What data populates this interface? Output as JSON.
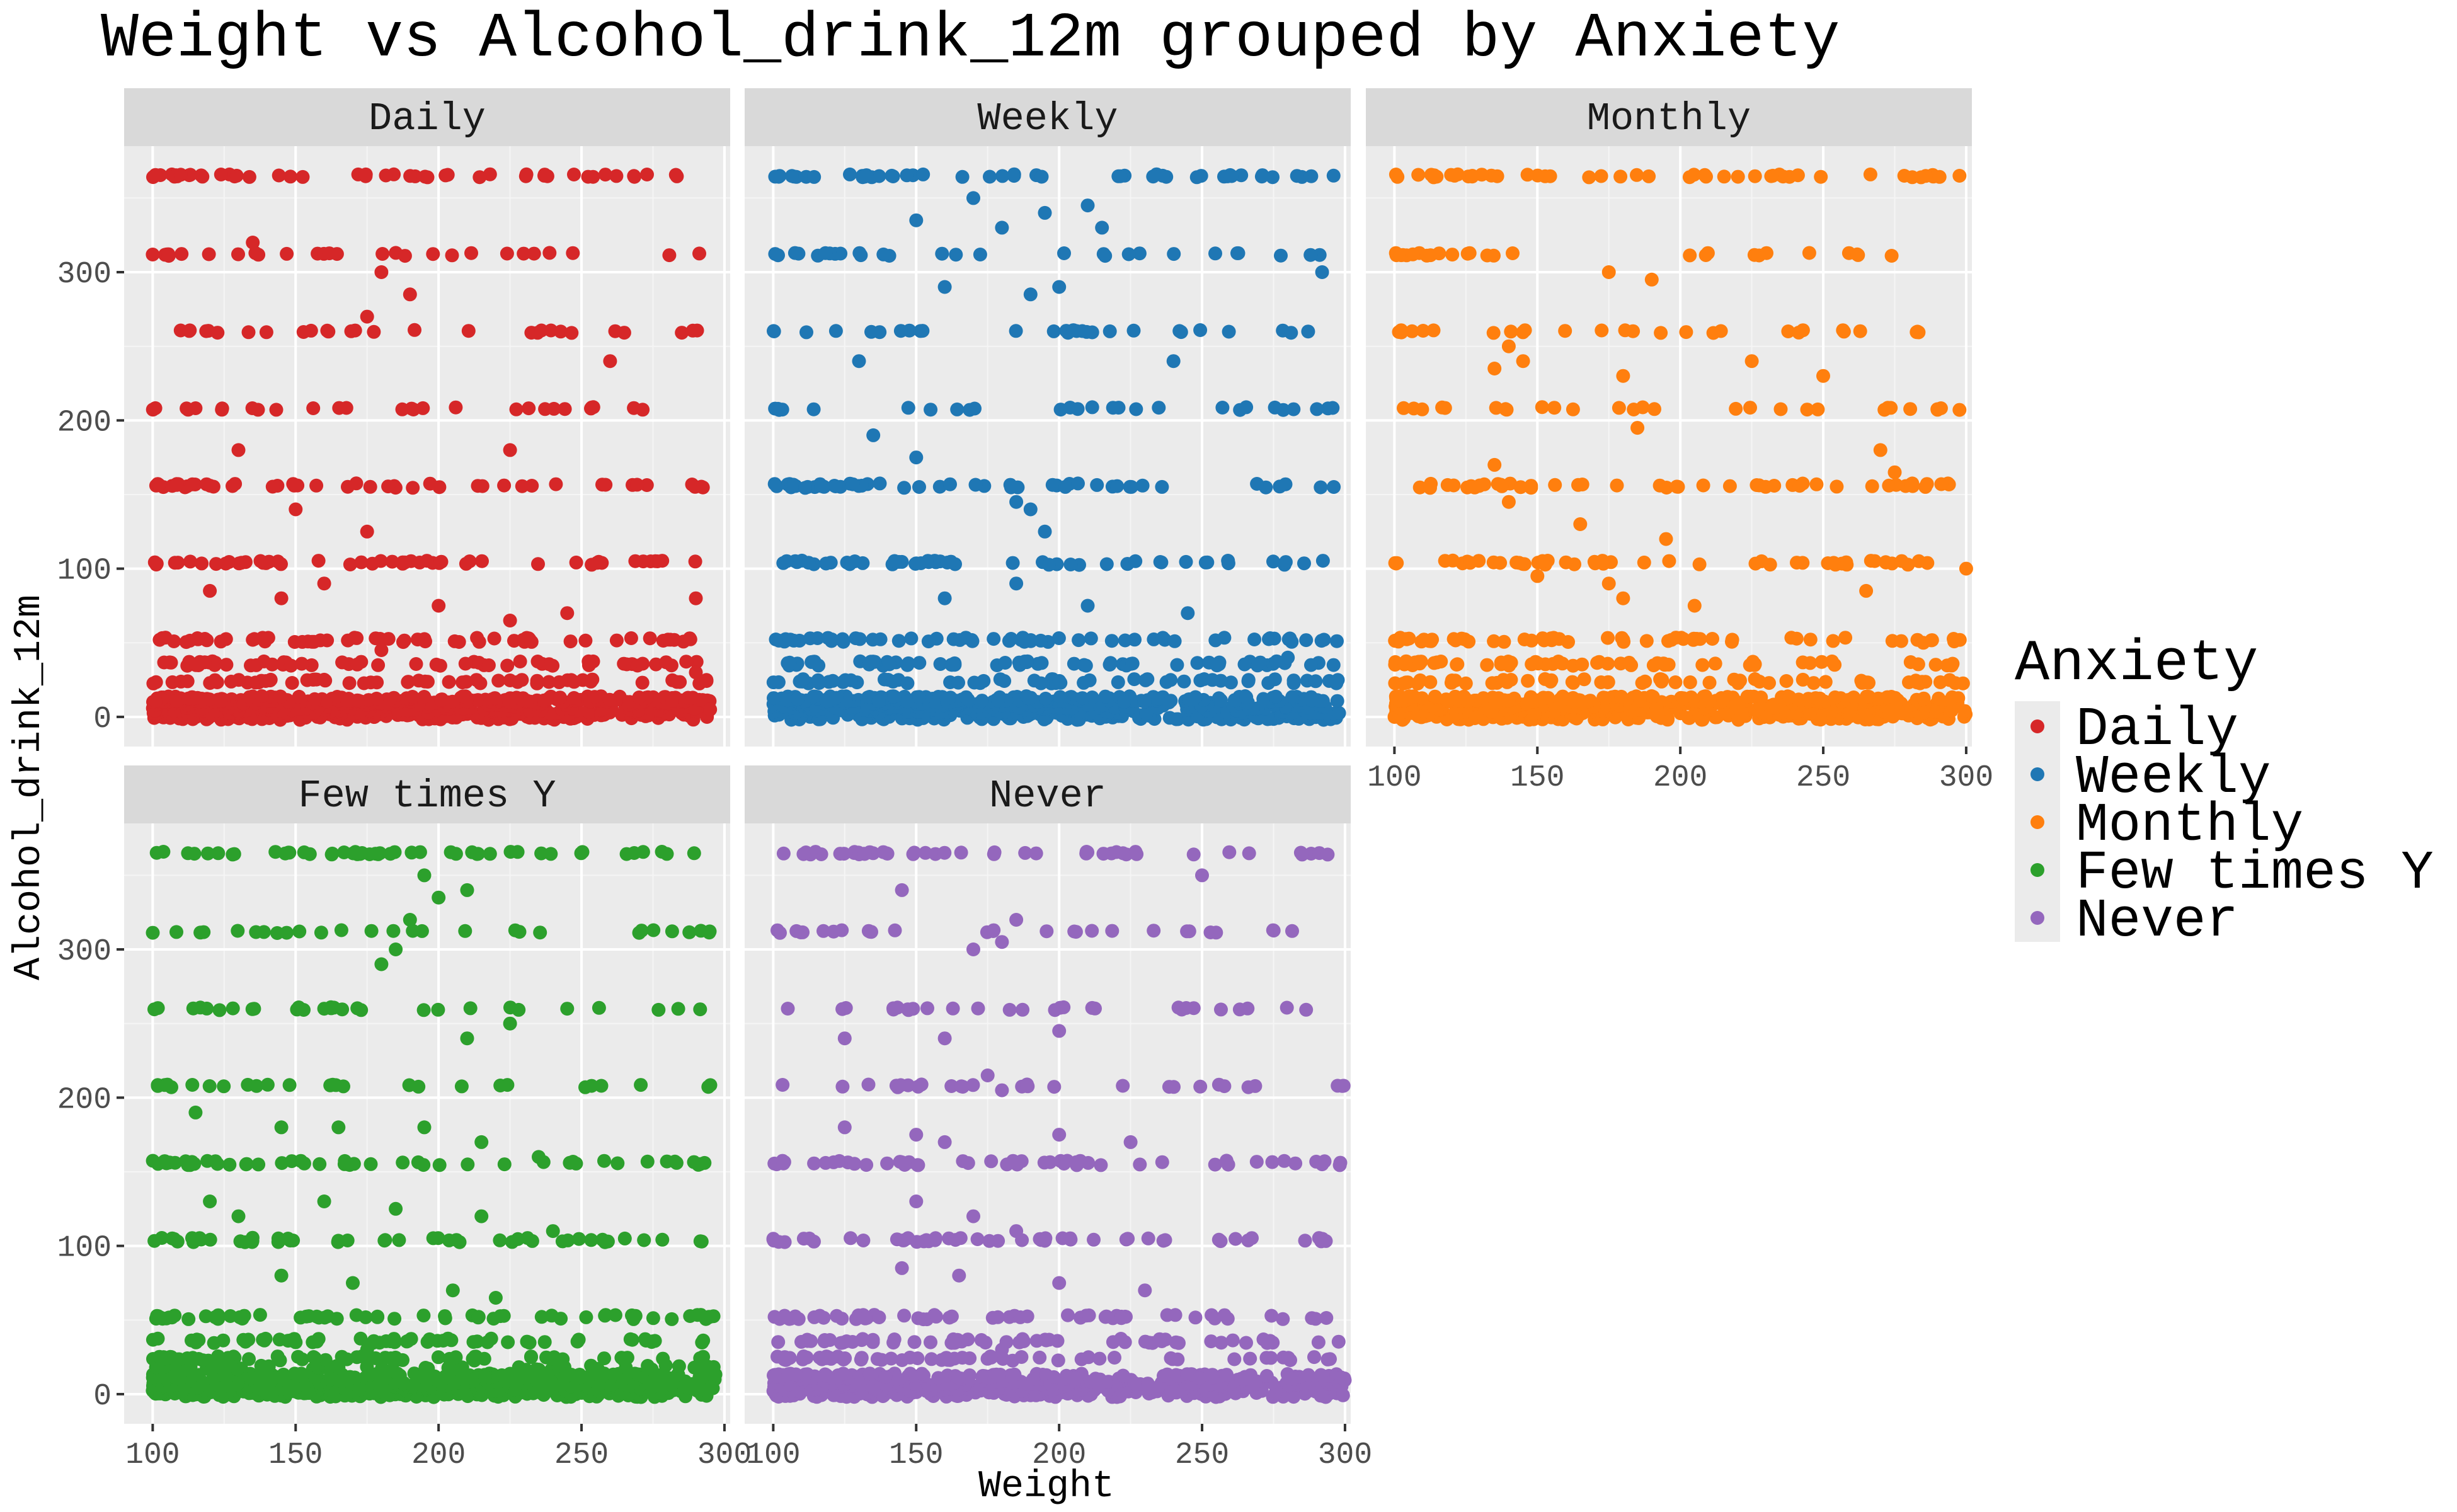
{
  "chart_data": {
    "type": "scatter",
    "title": "Weight vs Alcohol_drink_12m grouped by Anxiety",
    "xlabel": "Weight",
    "ylabel": "Alcohol_drink_12m",
    "xlim": [
      90,
      302
    ],
    "ylim": [
      -20,
      385
    ],
    "x_ticks": [
      100,
      150,
      200,
      250,
      300
    ],
    "y_ticks": [
      0,
      100,
      200,
      300
    ],
    "grid": true,
    "facet_by": "Anxiety",
    "legend": {
      "title": "Anxiety",
      "position": "right",
      "items": [
        "Daily",
        "Weekly",
        "Monthly",
        "Few times Y",
        "Never"
      ]
    },
    "colors": {
      "Daily": "#d62728",
      "Weekly": "#1f77b4",
      "Monthly": "#ff7f0e",
      "Few times Y": "#2ca02c",
      "Never": "#9467bd",
      "panel_background": "#ebebeb",
      "strip_background": "#d9d9d9"
    },
    "common_y_levels": [
      0,
      2,
      4,
      6,
      8,
      12,
      24,
      36,
      52,
      104,
      156,
      208,
      260,
      312,
      365
    ],
    "panels": [
      {
        "name": "Daily",
        "x_range": [
          100,
          295
        ],
        "y_levels": [
          0,
          3,
          6,
          10,
          12,
          24,
          36,
          52,
          104,
          156,
          208,
          260,
          312,
          365
        ],
        "scattered_points": [
          [
            135,
            320
          ],
          [
            180,
            300
          ],
          [
            190,
            285
          ],
          [
            175,
            270
          ],
          [
            260,
            240
          ],
          [
            225,
            180
          ],
          [
            130,
            180
          ],
          [
            150,
            140
          ],
          [
            175,
            125
          ],
          [
            290,
            80
          ],
          [
            200,
            75
          ],
          [
            160,
            90
          ],
          [
            145,
            80
          ],
          [
            120,
            85
          ],
          [
            225,
            65
          ],
          [
            245,
            70
          ],
          [
            180,
            45
          ],
          [
            290,
            30
          ],
          [
            295,
            5
          ]
        ]
      },
      {
        "name": "Weekly",
        "x_range": [
          100,
          298
        ],
        "y_levels": [
          0,
          4,
          8,
          12,
          24,
          36,
          52,
          104,
          156,
          208,
          260,
          312,
          365
        ],
        "scattered_points": [
          [
            150,
            335
          ],
          [
            170,
            350
          ],
          [
            180,
            330
          ],
          [
            195,
            340
          ],
          [
            210,
            345
          ],
          [
            215,
            330
          ],
          [
            160,
            290
          ],
          [
            190,
            285
          ],
          [
            200,
            290
          ],
          [
            292,
            300
          ],
          [
            130,
            240
          ],
          [
            240,
            240
          ],
          [
            135,
            190
          ],
          [
            185,
            145
          ],
          [
            190,
            140
          ],
          [
            195,
            125
          ],
          [
            160,
            80
          ],
          [
            185,
            90
          ],
          [
            210,
            75
          ],
          [
            245,
            70
          ],
          [
            280,
            40
          ],
          [
            296,
            35
          ],
          [
            150,
            175
          ]
        ]
      },
      {
        "name": "Monthly",
        "x_range": [
          100,
          300
        ],
        "y_levels": [
          0,
          4,
          8,
          12,
          24,
          36,
          52,
          104,
          156,
          208,
          260,
          312,
          365
        ],
        "scattered_points": [
          [
            175,
            300
          ],
          [
            190,
            295
          ],
          [
            140,
            250
          ],
          [
            145,
            240
          ],
          [
            135,
            235
          ],
          [
            180,
            230
          ],
          [
            250,
            230
          ],
          [
            225,
            240
          ],
          [
            185,
            195
          ],
          [
            270,
            180
          ],
          [
            275,
            165
          ],
          [
            135,
            170
          ],
          [
            140,
            145
          ],
          [
            165,
            130
          ],
          [
            195,
            120
          ],
          [
            150,
            95
          ],
          [
            175,
            90
          ],
          [
            180,
            80
          ],
          [
            205,
            75
          ],
          [
            265,
            85
          ],
          [
            300,
            100
          ],
          [
            285,
            50
          ],
          [
            295,
            35
          ]
        ]
      },
      {
        "name": "Few times Y",
        "x_range": [
          100,
          297
        ],
        "y_levels": [
          0,
          2,
          4,
          6,
          8,
          12,
          18,
          24,
          36,
          52,
          104,
          156,
          208,
          260,
          312,
          365
        ],
        "scattered_points": [
          [
            180,
            290
          ],
          [
            185,
            300
          ],
          [
            200,
            335
          ],
          [
            195,
            350
          ],
          [
            190,
            320
          ],
          [
            210,
            340
          ],
          [
            245,
            260
          ],
          [
            210,
            240
          ],
          [
            225,
            250
          ],
          [
            115,
            190
          ],
          [
            145,
            180
          ],
          [
            165,
            180
          ],
          [
            195,
            180
          ],
          [
            215,
            170
          ],
          [
            235,
            160
          ],
          [
            120,
            130
          ],
          [
            130,
            120
          ],
          [
            160,
            130
          ],
          [
            185,
            125
          ],
          [
            215,
            120
          ],
          [
            240,
            110
          ],
          [
            145,
            80
          ],
          [
            170,
            75
          ],
          [
            205,
            70
          ],
          [
            220,
            65
          ],
          [
            150,
            35
          ],
          [
            175,
            30
          ]
        ]
      },
      {
        "name": "Never",
        "x_range": [
          100,
          300
        ],
        "y_levels": [
          0,
          4,
          8,
          12,
          24,
          36,
          52,
          104,
          156,
          208,
          260,
          312,
          365
        ],
        "scattered_points": [
          [
            145,
            340
          ],
          [
            250,
            350
          ],
          [
            185,
            320
          ],
          [
            170,
            300
          ],
          [
            180,
            305
          ],
          [
            125,
            240
          ],
          [
            160,
            240
          ],
          [
            200,
            245
          ],
          [
            175,
            215
          ],
          [
            180,
            205
          ],
          [
            125,
            180
          ],
          [
            150,
            175
          ],
          [
            160,
            170
          ],
          [
            200,
            175
          ],
          [
            225,
            170
          ],
          [
            150,
            130
          ],
          [
            170,
            120
          ],
          [
            185,
            110
          ],
          [
            145,
            85
          ],
          [
            165,
            80
          ],
          [
            200,
            75
          ],
          [
            230,
            70
          ],
          [
            155,
            35
          ],
          [
            180,
            30
          ]
        ]
      }
    ]
  }
}
